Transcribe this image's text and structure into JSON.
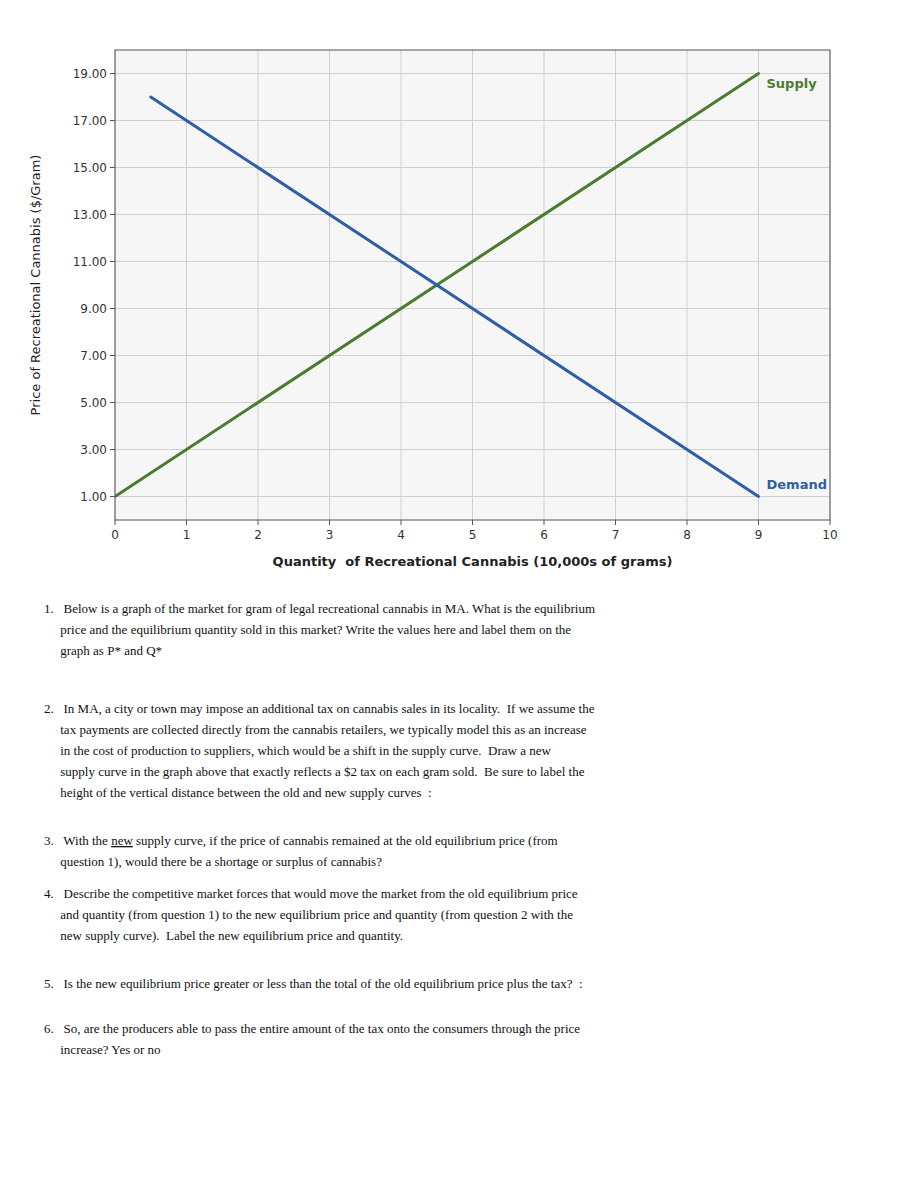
{
  "chart_data": {
    "type": "line",
    "xlabel": "Quantity  of Recreational Cannabis (10,000s of grams)",
    "ylabel": "Price of Recreational Cannabis ($/Gram)",
    "xlim": [
      0,
      10
    ],
    "ylim": [
      0,
      20
    ],
    "xticks": [
      0,
      1,
      2,
      3,
      4,
      5,
      6,
      7,
      8,
      9,
      10
    ],
    "yticks": [
      {
        "value": 1.0,
        "label": "1.00"
      },
      {
        "value": 3.0,
        "label": "3.00"
      },
      {
        "value": 5.0,
        "label": "5.00"
      },
      {
        "value": 7.0,
        "label": "7.00"
      },
      {
        "value": 9.0,
        "label": "9.00"
      },
      {
        "value": 11.0,
        "label": "11.00"
      },
      {
        "value": 13.0,
        "label": "13.00"
      },
      {
        "value": 15.0,
        "label": "15.00"
      },
      {
        "value": 17.0,
        "label": "17.00"
      },
      {
        "value": 19.0,
        "label": "19.00"
      }
    ],
    "grid": true,
    "series": [
      {
        "name": "Supply",
        "color": "#4a7c2f",
        "x": [
          0,
          9
        ],
        "values": [
          1,
          19
        ]
      },
      {
        "name": "Demand",
        "color": "#2e5fa3",
        "x": [
          0.5,
          9
        ],
        "values": [
          18,
          1
        ]
      }
    ],
    "annotations": [
      [
        "1.   Below is a graph of the market for gram of legal recreational cannabis in MA. What is the equilibrium",
        "     price and the equilibrium quantity sold in this market? Write the values here and label them on the",
        "     graph as P* and Q*"
      ],
      [
        "2.   In MA, a city or town may impose an additional tax on cannabis sales in its locality.  If we assume the",
        "     tax payments are collected directly from the cannabis retailers, we typically model this as an increase",
        "     in the cost of production to suppliers, which would be a shift in the supply curve.  Draw a new",
        "     supply curve in the graph above that exactly reflects a $2 tax on each gram sold.  Be sure to label the",
        "     height of the vertical distance between the old and new supply curves  :"
      ],
      [
        [
          "3.   With the ",
          "new",
          " supply curve, if the price of cannabis remained at the old equilibrium price (from"
        ],
        "     question 1), would there be a shortage or surplus of cannabis?"
      ],
      [
        "4.   Describe the competitive market forces that would move the market from the old equilibrium price",
        "     and quantity (from question 1) to the new equilibrium price and quantity (from question 2 with the",
        "     new supply curve).  Label the new equilibrium price and quantity."
      ],
      [
        "5.   Is the new equilibrium price greater or less than the total of the old equilibrium price plus the tax?  :"
      ],
      [
        "6.   So, are the producers able to pass the entire amount of the tax onto the consumers through the price",
        "     increase? Yes or no  "
      ]
    ]
  }
}
